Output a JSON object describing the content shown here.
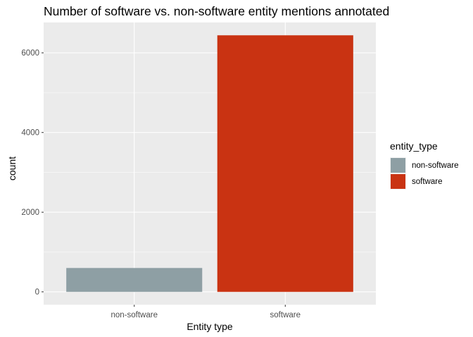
{
  "chart_data": {
    "type": "bar",
    "title": "Number of software vs. non-software entity mentions annotated",
    "xlabel": "Entity type",
    "ylabel": "count",
    "categories": [
      "non-software",
      "software"
    ],
    "values": [
      600,
      6440
    ],
    "colors": [
      "#8E9FA4",
      "#C93312"
    ],
    "yticks": [
      0,
      2000,
      4000,
      6000
    ],
    "ylim": [
      -322,
      6762
    ],
    "grid": true,
    "panel_background": "#EBEBEB",
    "legend": {
      "title": "entity_type",
      "placement": "right",
      "entries": [
        {
          "label": "non-software",
          "color": "#8E9FA4"
        },
        {
          "label": "software",
          "color": "#C93312"
        }
      ]
    }
  }
}
